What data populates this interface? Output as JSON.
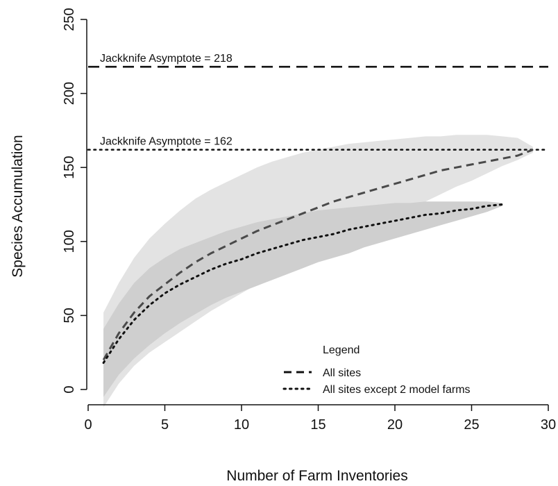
{
  "chart_data": {
    "type": "line",
    "xlabel": "Number of Farm Inventories",
    "ylabel": "Species Accumulation",
    "xlim": [
      0,
      30
    ],
    "ylim": [
      0,
      250
    ],
    "xticks": [
      0,
      5,
      10,
      15,
      20,
      25,
      30
    ],
    "yticks": [
      0,
      50,
      100,
      150,
      200,
      250
    ],
    "grid": false,
    "legend": {
      "title": "Legend",
      "placement": "bottom-center",
      "entries": [
        "All sites",
        "All sites except 2 model farms"
      ]
    },
    "series": [
      {
        "name": "All sites",
        "linestyle": "dashed",
        "color": "#4a4a4a",
        "x": [
          1,
          2,
          3,
          4,
          5,
          6,
          7,
          8,
          9,
          10,
          11,
          12,
          13,
          14,
          15,
          16,
          17,
          18,
          19,
          20,
          21,
          22,
          23,
          24,
          25,
          26,
          27,
          28,
          29
        ],
        "y": [
          20,
          38,
          52,
          63,
          71,
          79,
          86,
          92,
          97,
          102,
          107,
          111,
          115,
          119,
          123,
          127,
          130,
          133,
          136,
          139,
          142,
          145,
          148,
          150,
          152,
          154,
          156,
          158,
          162
        ],
        "band_upper": [
          52,
          72,
          89,
          102,
          112,
          121,
          129,
          135,
          140,
          145,
          150,
          154,
          157,
          160,
          162,
          164,
          166,
          167,
          168,
          169,
          170,
          171,
          171,
          172,
          172,
          172,
          171,
          170,
          164
        ],
        "band_lower": [
          -12,
          4,
          16,
          25,
          32,
          39,
          46,
          53,
          59,
          65,
          71,
          76,
          82,
          87,
          92,
          97,
          102,
          107,
          112,
          117,
          122,
          127,
          132,
          137,
          141,
          146,
          151,
          155,
          160
        ]
      },
      {
        "name": "All sites except 2 model farms",
        "linestyle": "dotted",
        "color": "#111111",
        "x": [
          1,
          2,
          3,
          4,
          5,
          6,
          7,
          8,
          9,
          10,
          11,
          12,
          13,
          14,
          15,
          16,
          17,
          18,
          19,
          20,
          21,
          22,
          23,
          24,
          25,
          26,
          27
        ],
        "y": [
          18,
          34,
          47,
          57,
          65,
          71,
          76,
          81,
          85,
          88,
          92,
          95,
          98,
          101,
          103,
          105,
          108,
          110,
          112,
          114,
          116,
          118,
          119,
          121,
          122,
          124,
          125
        ],
        "band_upper": [
          41,
          58,
          72,
          82,
          89,
          95,
          99,
          103,
          107,
          110,
          113,
          115,
          117,
          119,
          121,
          122,
          123,
          124,
          125,
          126,
          126,
          127,
          127,
          127,
          127,
          127,
          126
        ],
        "band_lower": [
          -5,
          10,
          21,
          30,
          38,
          45,
          51,
          57,
          62,
          66,
          70,
          74,
          78,
          82,
          86,
          89,
          92,
          96,
          99,
          102,
          105,
          108,
          111,
          114,
          117,
          120,
          124
        ]
      }
    ],
    "reference_lines": [
      {
        "y": 218,
        "linestyle": "dashed",
        "label": "Jackknife Asymptote = 218"
      },
      {
        "y": 162,
        "linestyle": "dotted",
        "label": "Jackknife Asymptote = 162"
      }
    ],
    "colors": {
      "band_all_sites": "#e3e3e3",
      "band_except_model_farms": "#cfcfcf"
    }
  }
}
